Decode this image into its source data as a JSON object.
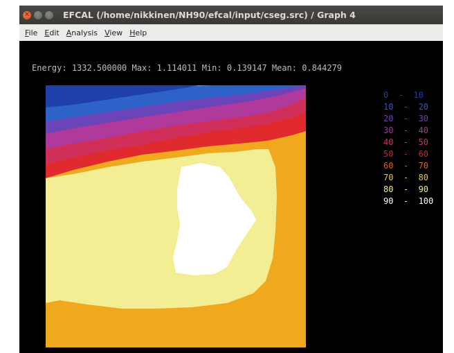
{
  "window": {
    "title": "EFCAL (/home/nikkinen/NH90/efcal/input/cseg.src) / Graph 4",
    "buttons": {
      "close": "×",
      "minimize": "",
      "maximize": ""
    }
  },
  "menu": {
    "items": [
      {
        "mnemonic": "F",
        "rest": "ile"
      },
      {
        "mnemonic": "E",
        "rest": "dit"
      },
      {
        "mnemonic": "A",
        "rest": "nalysis"
      },
      {
        "mnemonic": "V",
        "rest": "iew"
      },
      {
        "mnemonic": "H",
        "rest": "elp"
      }
    ]
  },
  "stats": {
    "energy_label": "Energy:",
    "energy_value": "1332.500000",
    "max_label": "Max:",
    "max_value": "1.114011",
    "min_label": "Min:",
    "min_value": "0.139147",
    "mean_label": "Mean:",
    "mean_value": "0.844279"
  },
  "legend": [
    {
      "label": "0  -  10",
      "color": "#1e3fa6"
    },
    {
      "label": "10  -  20",
      "color": "#2f55c8"
    },
    {
      "label": "20  -  30",
      "color": "#6f3fb6"
    },
    {
      "label": "30  -  40",
      "color": "#a2389e"
    },
    {
      "label": "40  -  50",
      "color": "#c2356f"
    },
    {
      "label": "50  -  60",
      "color": "#c9262f"
    },
    {
      "label": "60  -  70",
      "color": "#e2601c"
    },
    {
      "label": "70  -  80",
      "color": "#e8c84a"
    },
    {
      "label": "80  -  90",
      "color": "#f1ec9f"
    },
    {
      "label": "90  -  100",
      "color": "#ffffff"
    }
  ],
  "colors": {
    "band_0_10": "#1f40a8",
    "band_10_20": "#2e62c9",
    "band_20_30": "#6a44b8",
    "band_30_40": "#b0399c",
    "band_40_50": "#cf2f58",
    "band_50_60": "#e02a2e",
    "band_60_70": "#f0a91f",
    "band_70_80": "#f3cf5a",
    "band_80_90": "#f3ee93",
    "band_90_100": "#ffffff"
  }
}
